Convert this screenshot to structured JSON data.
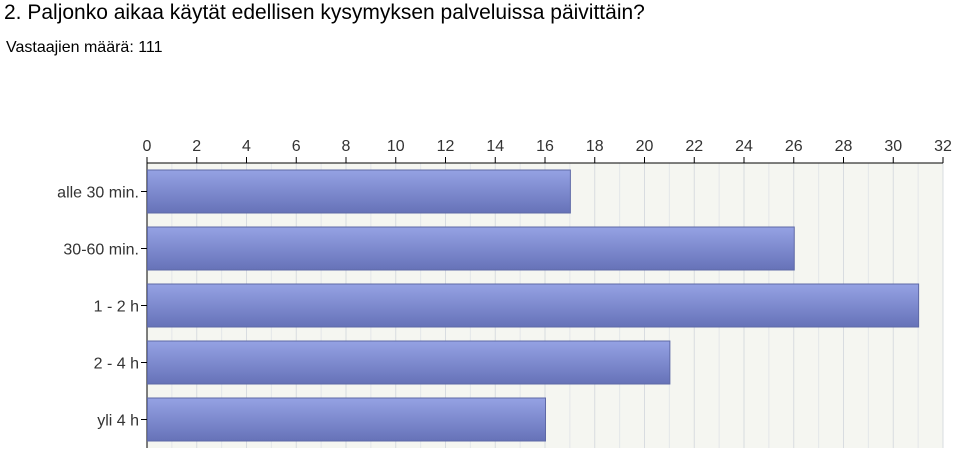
{
  "title": "2. Paljonko aikaa käytät edellisen kysymyksen palveluissa päivittäin?",
  "respondents": "Vastaajien määrä: 111",
  "chart_data": {
    "type": "bar",
    "orientation": "horizontal",
    "categories": [
      "alle 30 min.",
      "30-60 min.",
      "1 - 2 h",
      "2 - 4 h",
      "yli 4 h"
    ],
    "values": [
      17,
      26,
      31,
      21,
      16
    ],
    "xlim": [
      0,
      32
    ],
    "xticks": [
      0,
      2,
      4,
      6,
      8,
      10,
      12,
      14,
      16,
      18,
      20,
      22,
      24,
      26,
      28,
      30,
      32
    ],
    "axis_position": "top",
    "grid": true,
    "legend": "none",
    "colors": {
      "bar_light": "#95a2e4",
      "bar_dark": "#6672b8",
      "bar_edge": "#5e69a6",
      "plot_background": "#f5f6f1",
      "grid": "#d8dce0",
      "axis": "#000000"
    }
  }
}
